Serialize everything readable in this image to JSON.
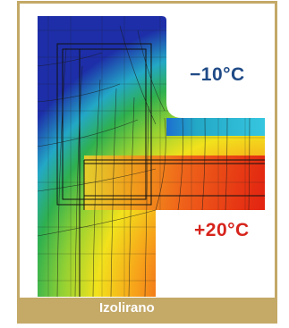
{
  "labels": {
    "cold_temperature": "−10°C",
    "warm_temperature": "+20°C",
    "caption": "Izolirano"
  },
  "colors": {
    "frame": "#c4a967",
    "cold_label": "#1f4a86",
    "warm_label": "#d6241c",
    "caption_text": "#ffffff",
    "gradient_cold": "#1d2ea8",
    "gradient_mid": "#3fbf3a",
    "gradient_warm": "#e42a14"
  }
}
